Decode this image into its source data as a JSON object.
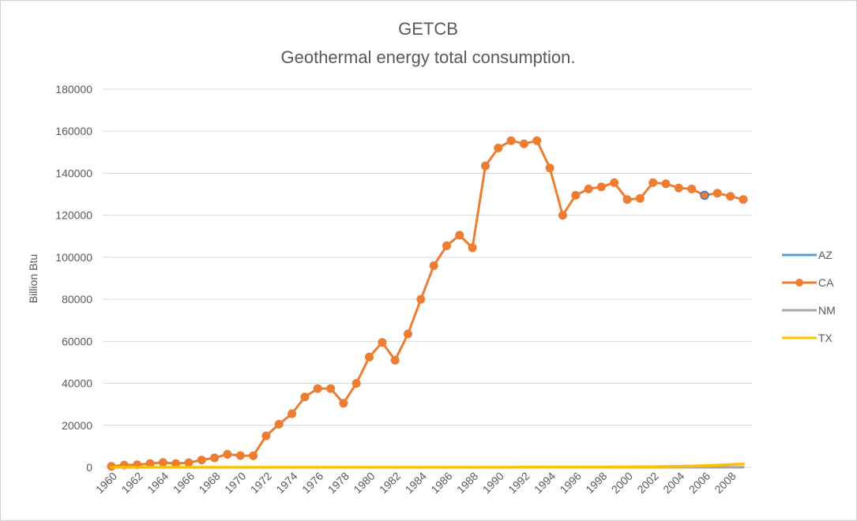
{
  "chart_data": {
    "type": "line",
    "title": "GETCB",
    "subtitle": "Geothermal  energy total consumption.",
    "ylabel": "Billion Btu",
    "xlabel": "",
    "ylim": [
      0,
      180000
    ],
    "yticks": [
      0,
      20000,
      40000,
      60000,
      80000,
      100000,
      120000,
      140000,
      160000,
      180000
    ],
    "ytick_labels": [
      "0",
      "20000",
      "40000",
      "60000",
      "80000",
      "100000",
      "120000",
      "140000",
      "160000",
      "180000"
    ],
    "x": [
      1960,
      1961,
      1962,
      1963,
      1964,
      1965,
      1966,
      1967,
      1968,
      1969,
      1970,
      1971,
      1972,
      1973,
      1974,
      1975,
      1976,
      1977,
      1978,
      1979,
      1980,
      1981,
      1982,
      1983,
      1984,
      1985,
      1986,
      1987,
      1988,
      1989,
      1990,
      1991,
      1992,
      1993,
      1994,
      1995,
      1996,
      1997,
      1998,
      1999,
      2000,
      2001,
      2002,
      2003,
      2004,
      2005,
      2006,
      2007,
      2008,
      2009
    ],
    "xtick_labels": [
      "1960",
      "1962",
      "1964",
      "1966",
      "1968",
      "1970",
      "1972",
      "1974",
      "1976",
      "1978",
      "1980",
      "1982",
      "1984",
      "1986",
      "1988",
      "1990",
      "1992",
      "1994",
      "1996",
      "1998",
      "2000",
      "2002",
      "2004",
      "2006",
      "2008"
    ],
    "grid": true,
    "legend_position": "right",
    "series": [
      {
        "name": "AZ",
        "color": "#5B9BD5",
        "markers": false,
        "values": [
          0,
          0,
          0,
          0,
          0,
          0,
          0,
          0,
          0,
          0,
          0,
          0,
          0,
          0,
          0,
          0,
          0,
          0,
          0,
          0,
          0,
          0,
          0,
          0,
          0,
          0,
          0,
          0,
          0,
          0,
          0,
          0,
          0,
          0,
          0,
          0,
          0,
          0,
          0,
          0,
          0,
          0,
          0,
          0,
          0,
          0,
          0,
          0,
          0,
          0
        ]
      },
      {
        "name": "CA",
        "color": "#ED7D31",
        "markers": true,
        "values": [
          500,
          1100,
          1200,
          1800,
          2300,
          1800,
          2200,
          3500,
          4500,
          6200,
          5600,
          5500,
          15000,
          20500,
          25500,
          33500,
          37500,
          37500,
          30500,
          40000,
          52500,
          59500,
          51000,
          63500,
          80000,
          96000,
          105500,
          110500,
          104500,
          143500,
          152000,
          155500,
          154000,
          155500,
          142500,
          120000,
          129500,
          132500,
          133500,
          135500,
          127500,
          128000,
          135500,
          135000,
          133000,
          132500,
          129500,
          130500,
          129000,
          127500
        ]
      },
      {
        "name": "NM",
        "color": "#A5A5A5",
        "markers": false,
        "values": [
          0,
          0,
          0,
          0,
          0,
          0,
          0,
          0,
          0,
          0,
          0,
          0,
          0,
          0,
          0,
          0,
          0,
          0,
          0,
          0,
          0,
          0,
          0,
          0,
          0,
          0,
          0,
          0,
          0,
          0,
          0,
          0,
          0,
          0,
          0,
          0,
          0,
          0,
          0,
          0,
          0,
          0,
          0,
          0,
          0,
          0,
          0,
          0,
          0,
          100
        ]
      },
      {
        "name": "TX",
        "color": "#FFC000",
        "markers": false,
        "values": [
          0,
          0,
          0,
          0,
          0,
          0,
          0,
          0,
          0,
          0,
          0,
          0,
          0,
          0,
          0,
          0,
          0,
          0,
          0,
          0,
          0,
          0,
          0,
          0,
          0,
          0,
          0,
          0,
          0,
          0,
          0,
          0,
          100,
          100,
          100,
          100,
          100,
          100,
          100,
          200,
          200,
          300,
          300,
          400,
          500,
          600,
          800,
          1000,
          1300,
          1600
        ]
      }
    ]
  }
}
